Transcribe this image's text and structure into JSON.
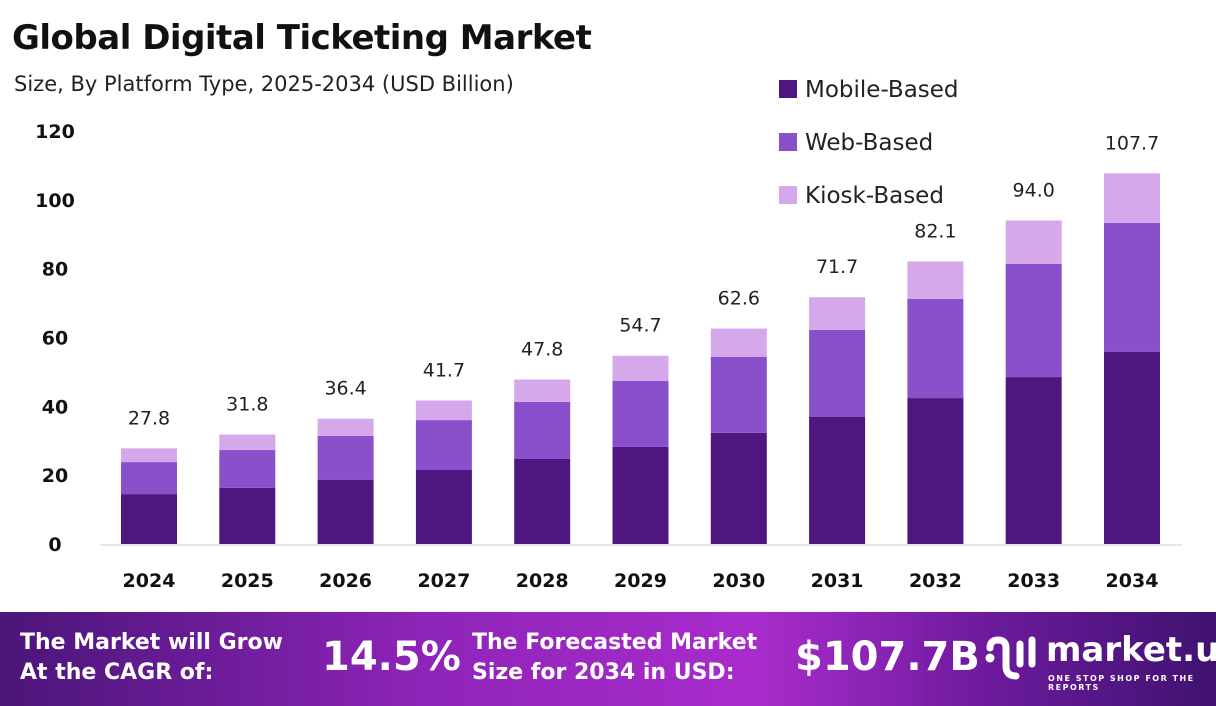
{
  "chart_data": {
    "type": "bar",
    "stacked": true,
    "title": "Global Digital Ticketing Market",
    "subtitle": "Size, By Platform Type, 2025-2034 (USD Billion)",
    "categories": [
      "2024",
      "2025",
      "2026",
      "2027",
      "2028",
      "2029",
      "2030",
      "2031",
      "2032",
      "2033",
      "2034"
    ],
    "series": [
      {
        "name": "Mobile-Based",
        "color": "#4f1680",
        "values": [
          14.5,
          16.3,
          18.6,
          21.5,
          24.7,
          28.2,
          32.3,
          36.9,
          42.4,
          48.5,
          55.8
        ]
      },
      {
        "name": "Web-Based",
        "color": "#8a4fcb",
        "values": [
          9.3,
          11.0,
          12.8,
          14.5,
          16.6,
          19.2,
          22.1,
          25.3,
          28.8,
          32.9,
          37.5
        ]
      },
      {
        "name": "Kiosk-Based",
        "color": "#d4a8ea",
        "values": [
          4.0,
          4.5,
          5.0,
          5.7,
          6.5,
          7.3,
          8.2,
          9.5,
          10.9,
          12.6,
          14.4
        ]
      }
    ],
    "totals": [
      "27.8",
      "31.8",
      "36.4",
      "41.7",
      "47.8",
      "54.7",
      "62.6",
      "71.7",
      "82.1",
      "94.0",
      "107.7"
    ],
    "yticks": [
      "0",
      "20",
      "40",
      "60",
      "80",
      "100",
      "120"
    ],
    "ylim": [
      0,
      120
    ],
    "grid": false,
    "legend_position": "top-right"
  },
  "footer": {
    "cagr_label_1": "The Market will Grow",
    "cagr_label_2": "At the CAGR of:",
    "cagr_value": "14.5%",
    "forecast_label_1": "The Forecasted Market",
    "forecast_label_2": "Size for 2034 in USD:",
    "forecast_value": "$107.7B",
    "logo_name": "market.us",
    "logo_tagline": "ONE STOP SHOP FOR THE REPORTS"
  }
}
